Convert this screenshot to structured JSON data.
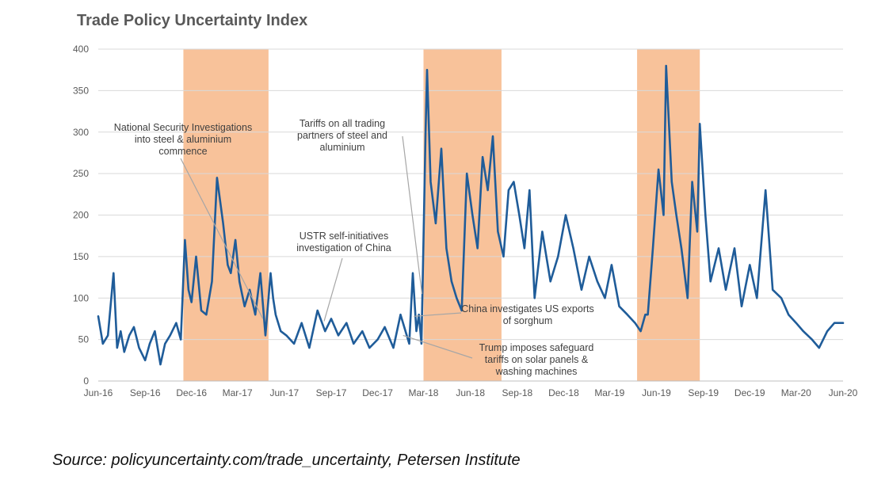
{
  "chart_data": {
    "type": "line",
    "title": "Trade Policy Uncertainty Index",
    "xlabel": "",
    "ylabel": "",
    "ylim": [
      0,
      400
    ],
    "xlim": [
      "2016-06-01",
      "2020-06-01"
    ],
    "yticks": [
      0,
      50,
      100,
      150,
      200,
      250,
      300,
      350,
      400
    ],
    "xticks": [
      {
        "date": "2016-06-01",
        "label": "Jun-16"
      },
      {
        "date": "2016-09-01",
        "label": "Sep-16"
      },
      {
        "date": "2016-12-01",
        "label": "Dec-16"
      },
      {
        "date": "2017-03-01",
        "label": "Mar-17"
      },
      {
        "date": "2017-06-01",
        "label": "Jun-17"
      },
      {
        "date": "2017-09-01",
        "label": "Sep-17"
      },
      {
        "date": "2017-12-01",
        "label": "Dec-17"
      },
      {
        "date": "2018-03-01",
        "label": "Mar-18"
      },
      {
        "date": "2018-06-01",
        "label": "Jun-18"
      },
      {
        "date": "2018-09-01",
        "label": "Sep-18"
      },
      {
        "date": "2018-12-01",
        "label": "Dec-18"
      },
      {
        "date": "2019-03-01",
        "label": "Mar-19"
      },
      {
        "date": "2019-06-01",
        "label": "Jun-19"
      },
      {
        "date": "2019-09-01",
        "label": "Sep-19"
      },
      {
        "date": "2019-12-01",
        "label": "Dec-19"
      },
      {
        "date": "2020-03-01",
        "label": "Mar-20"
      },
      {
        "date": "2020-06-01",
        "label": "Jun-20"
      }
    ],
    "grid": true,
    "legend": "none",
    "line_color": "#1F5C99",
    "shade_color": "#F8C29A",
    "shaded_periods": [
      {
        "start": "2016-11-15",
        "end": "2017-05-01"
      },
      {
        "start": "2018-03-01",
        "end": "2018-08-01"
      },
      {
        "start": "2019-04-24",
        "end": "2019-08-25"
      }
    ],
    "series": [
      {
        "x": [
          "2016-06-01",
          "2016-06-10",
          "2016-06-20",
          "2016-07-01",
          "2016-07-08",
          "2016-07-15",
          "2016-07-22",
          "2016-08-01",
          "2016-08-10",
          "2016-08-20",
          "2016-09-01",
          "2016-09-10",
          "2016-09-20",
          "2016-10-01",
          "2016-10-10",
          "2016-10-20",
          "2016-11-01",
          "2016-11-10",
          "2016-11-18",
          "2016-11-25",
          "2016-12-01",
          "2016-12-10",
          "2016-12-20",
          "2016-12-30",
          "2017-01-10",
          "2017-01-20",
          "2017-02-01",
          "2017-02-10",
          "2017-02-16",
          "2017-02-25",
          "2017-03-05",
          "2017-03-15",
          "2017-03-25",
          "2017-04-05",
          "2017-04-15",
          "2017-04-25",
          "2017-05-05",
          "2017-05-10",
          "2017-05-15",
          "2017-05-25",
          "2017-06-05",
          "2017-06-20",
          "2017-07-05",
          "2017-07-20",
          "2017-08-05",
          "2017-08-20",
          "2017-09-01",
          "2017-09-15",
          "2017-10-01",
          "2017-10-15",
          "2017-11-01",
          "2017-11-15",
          "2017-12-01",
          "2017-12-15",
          "2018-01-01",
          "2018-01-15",
          "2018-02-01",
          "2018-02-08",
          "2018-02-15",
          "2018-02-20",
          "2018-02-25",
          "2018-03-01",
          "2018-03-05",
          "2018-03-08",
          "2018-03-15",
          "2018-03-25",
          "2018-04-05",
          "2018-04-15",
          "2018-04-25",
          "2018-05-05",
          "2018-05-15",
          "2018-05-25",
          "2018-06-05",
          "2018-06-15",
          "2018-06-25",
          "2018-07-05",
          "2018-07-15",
          "2018-07-25",
          "2018-08-05",
          "2018-08-15",
          "2018-08-25",
          "2018-09-05",
          "2018-09-15",
          "2018-09-25",
          "2018-10-05",
          "2018-10-20",
          "2018-11-05",
          "2018-11-20",
          "2018-12-05",
          "2018-12-20",
          "2019-01-05",
          "2019-01-20",
          "2019-02-05",
          "2019-02-20",
          "2019-03-05",
          "2019-03-20",
          "2019-04-05",
          "2019-04-20",
          "2019-05-01",
          "2019-05-10",
          "2019-05-15",
          "2019-05-25",
          "2019-06-05",
          "2019-06-15",
          "2019-06-20",
          "2019-07-01",
          "2019-07-10",
          "2019-07-20",
          "2019-08-01",
          "2019-08-10",
          "2019-08-20",
          "2019-08-25",
          "2019-09-05",
          "2019-09-15",
          "2019-10-01",
          "2019-10-15",
          "2019-11-01",
          "2019-11-15",
          "2019-12-01",
          "2019-12-15",
          "2020-01-01",
          "2020-01-15",
          "2020-02-01",
          "2020-02-15",
          "2020-03-01",
          "2020-03-15",
          "2020-04-01",
          "2020-04-15",
          "2020-05-01",
          "2020-05-15",
          "2020-06-01"
        ],
        "values": [
          78,
          45,
          55,
          130,
          40,
          60,
          35,
          55,
          65,
          40,
          25,
          45,
          60,
          20,
          45,
          55,
          70,
          50,
          170,
          110,
          95,
          150,
          85,
          80,
          120,
          245,
          190,
          140,
          130,
          170,
          120,
          90,
          110,
          80,
          130,
          55,
          130,
          100,
          80,
          60,
          55,
          45,
          70,
          40,
          85,
          60,
          75,
          55,
          70,
          45,
          60,
          40,
          50,
          65,
          40,
          80,
          45,
          130,
          60,
          80,
          45,
          170,
          300,
          375,
          240,
          190,
          280,
          160,
          120,
          100,
          85,
          250,
          200,
          160,
          270,
          230,
          295,
          180,
          150,
          230,
          240,
          200,
          160,
          230,
          100,
          180,
          120,
          150,
          200,
          160,
          110,
          150,
          120,
          100,
          140,
          90,
          80,
          70,
          60,
          80,
          80,
          160,
          255,
          200,
          380,
          240,
          200,
          160,
          100,
          240,
          180,
          310,
          200,
          120,
          160,
          110,
          160,
          90,
          140,
          100,
          230,
          110,
          100,
          80,
          70,
          60,
          50,
          40,
          60,
          70,
          70
        ]
      }
    ],
    "annotations": [
      {
        "lines": [
          "National Security Investigations",
          "into steel & aluminium",
          "commence"
        ],
        "date": "2017-04-20",
        "value": 75
      },
      {
        "lines": [
          "Tariffs on all trading",
          "partners of steel and",
          "aluminium"
        ],
        "date": "2018-02-26",
        "value": 105
      },
      {
        "lines": [
          "USTR self-initiatives",
          "investigation of China"
        ],
        "date": "2017-08-18",
        "value": 72
      },
      {
        "lines": [
          "China investigates US exports",
          "of sorghum"
        ],
        "date": "2018-02-10",
        "value": 78
      },
      {
        "lines": [
          "Trump imposes safeguard",
          "tariffs on solar panels &",
          "washing machines"
        ],
        "date": "2018-01-20",
        "value": 55
      }
    ]
  },
  "source": "Source: policyuncertainty.com/trade_uncertainty, Petersen Institute"
}
